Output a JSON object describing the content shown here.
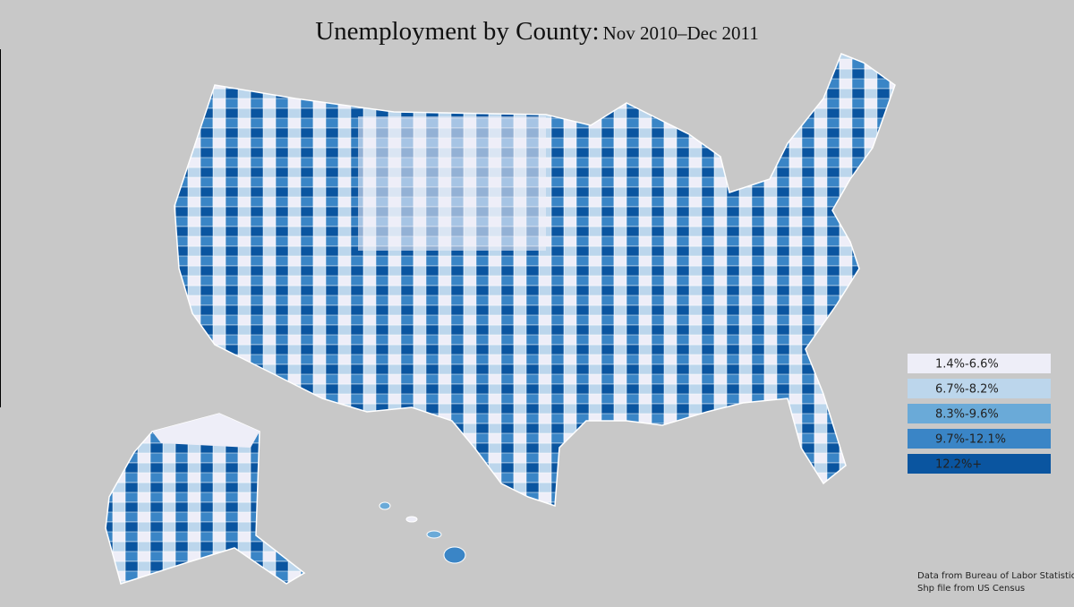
{
  "header": {
    "title": "Unemployment by County:",
    "subtitle": "Nov 2010–Dec 2011"
  },
  "legend": [
    {
      "label": "1.4%-6.6%",
      "color": "#eeeef8"
    },
    {
      "label": "6.7%-8.2%",
      "color": "#bcd6ec"
    },
    {
      "label": "8.3%-9.6%",
      "color": "#6aaad8"
    },
    {
      "label": "9.7%-12.1%",
      "color": "#3a85c6"
    },
    {
      "label": "12.2%+",
      "color": "#0a55a0"
    }
  ],
  "source": [
    "Data from Bureau of Labor Statistics",
    "Shp file from US Census"
  ]
}
